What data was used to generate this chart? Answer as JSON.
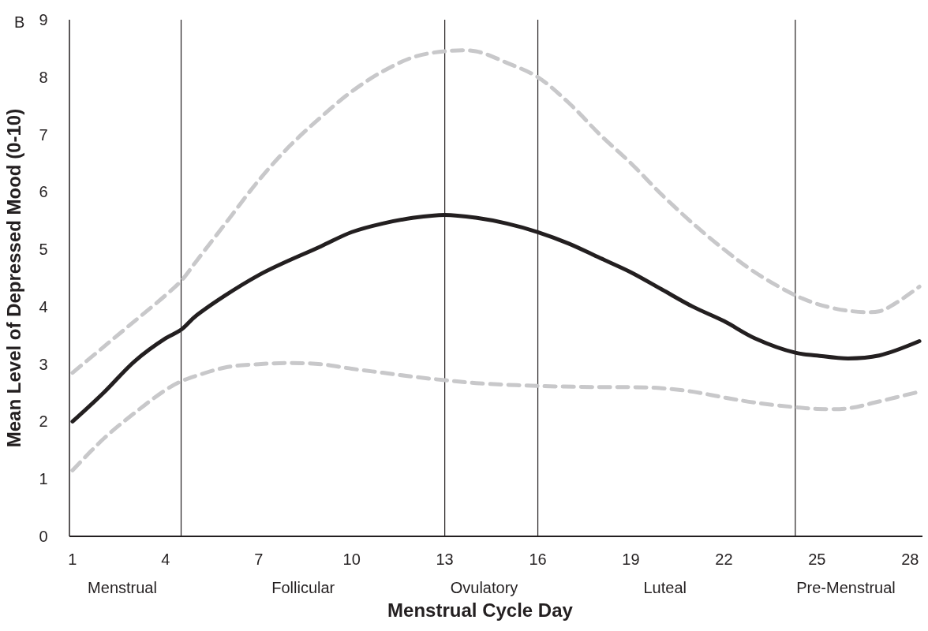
{
  "chart_data": {
    "type": "line",
    "xlabel": "Menstrual Cycle Day",
    "ylabel": "Mean Level of Depressed Mood (0-10)",
    "xlim": [
      0.9,
      28.4
    ],
    "xticks": [
      1,
      4,
      7,
      10,
      13,
      16,
      19,
      22,
      25,
      28
    ],
    "ylim": [
      0,
      9
    ],
    "yticks": [
      0,
      1,
      2,
      3,
      4,
      5,
      6,
      7,
      8,
      9
    ],
    "grid": false,
    "marker": "none",
    "series": [
      {
        "color": "#c8c8ca",
        "line_style": "dashed",
        "x": [
          1,
          2,
          3,
          4,
          4.5,
          5,
          6,
          7,
          8,
          9,
          10,
          11,
          12,
          13,
          14,
          15,
          16,
          17,
          18,
          19,
          20,
          21,
          22,
          23,
          24.3,
          25,
          26,
          27,
          27.5,
          28.3
        ],
        "values": [
          2.85,
          3.3,
          3.75,
          4.2,
          4.45,
          4.8,
          5.5,
          6.2,
          6.8,
          7.3,
          7.75,
          8.1,
          8.35,
          8.45,
          8.45,
          8.25,
          8.0,
          7.55,
          7.0,
          6.5,
          5.95,
          5.45,
          5.0,
          4.6,
          4.2,
          4.05,
          3.93,
          3.92,
          4.05,
          4.35
        ]
      },
      {
        "color": "#c8c8ca",
        "line_style": "dashed",
        "x": [
          1,
          2,
          3,
          4,
          4.5,
          5,
          6,
          7,
          8,
          9,
          10,
          11,
          12,
          13,
          14,
          16,
          18,
          19,
          20,
          21,
          22,
          23,
          24.3,
          25,
          26,
          27,
          28.3
        ],
        "values": [
          1.15,
          1.7,
          2.15,
          2.55,
          2.7,
          2.8,
          2.95,
          3.0,
          3.02,
          3.0,
          2.92,
          2.85,
          2.78,
          2.72,
          2.67,
          2.62,
          2.6,
          2.6,
          2.58,
          2.52,
          2.42,
          2.33,
          2.25,
          2.22,
          2.23,
          2.35,
          2.52
        ]
      },
      {
        "color": "#231f20",
        "line_style": "solid",
        "x": [
          1,
          2,
          3,
          4,
          4.5,
          5,
          7,
          9,
          10,
          11,
          12,
          13,
          14,
          15,
          16,
          17,
          18,
          19,
          20,
          21,
          22,
          23,
          24.3,
          25,
          26,
          27,
          28.3
        ],
        "values": [
          2.0,
          2.5,
          3.05,
          3.45,
          3.6,
          3.85,
          4.55,
          5.05,
          5.3,
          5.45,
          5.55,
          5.6,
          5.55,
          5.45,
          5.3,
          5.1,
          4.85,
          4.6,
          4.3,
          4.0,
          3.75,
          3.45,
          3.2,
          3.15,
          3.1,
          3.15,
          3.4
        ]
      }
    ],
    "ref_lines": [
      {
        "axis": "x",
        "value": 4.5,
        "color": "#231f20"
      },
      {
        "axis": "x",
        "value": 13,
        "color": "#231f20"
      },
      {
        "axis": "x",
        "value": 16,
        "color": "#231f20"
      },
      {
        "axis": "x",
        "value": 24.3,
        "color": "#231f20"
      }
    ],
    "annotations": [
      "B",
      "Menstrual",
      "Follicular",
      "Ovulatory",
      "Luteal",
      "Pre-Menstrual"
    ]
  }
}
